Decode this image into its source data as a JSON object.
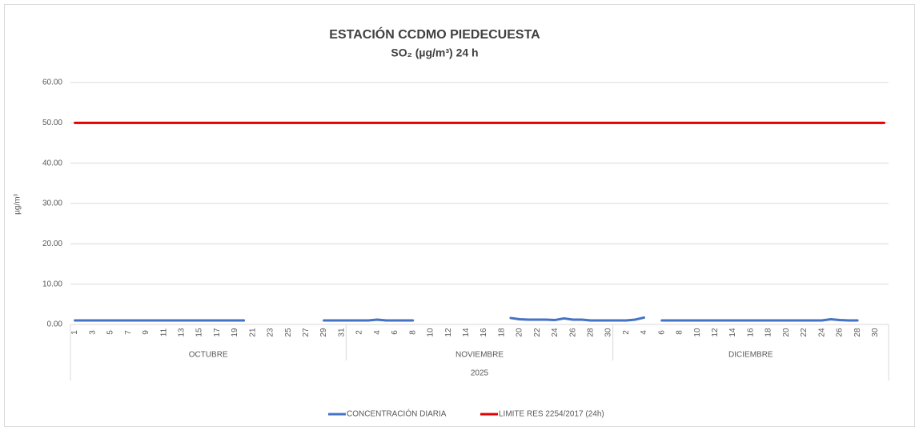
{
  "chart_data": {
    "type": "line",
    "title": "ESTACIÓN CCDMO PIEDECUESTA",
    "subtitle": "SO₂ (µg/m³) 24 h",
    "y_label": "µg/m³",
    "year": "2025",
    "groups": [
      {
        "name": "OCTUBRE",
        "categories": [
          "1",
          null,
          "3",
          null,
          "5",
          null,
          "7",
          null,
          "9",
          null,
          "11",
          null,
          "13",
          null,
          "15",
          null,
          "17",
          null,
          "19",
          null,
          "21",
          null,
          "23",
          null,
          "25",
          null,
          "27",
          null,
          "29",
          null,
          "31"
        ]
      },
      {
        "name": "NOVIEMBRE",
        "categories": [
          null,
          "2",
          null,
          "4",
          null,
          "6",
          null,
          "8",
          null,
          "10",
          null,
          "12",
          null,
          "14",
          null,
          "16",
          null,
          "18",
          null,
          "20",
          null,
          "22",
          null,
          "24",
          null,
          "26",
          null,
          "28",
          null,
          "30"
        ]
      },
      {
        "name": "DICIEMBRE",
        "categories": [
          null,
          "2",
          null,
          "4",
          null,
          "6",
          null,
          "8",
          null,
          "10",
          null,
          "12",
          null,
          "14",
          null,
          "16",
          null,
          "18",
          null,
          "20",
          null,
          "22",
          null,
          "24",
          null,
          "26",
          null,
          "28",
          null,
          "30",
          null
        ]
      }
    ],
    "series": [
      {
        "name": "CONCENTRACIÓN DIARIA",
        "color": "#4472c4",
        "values": [
          1.0,
          1.0,
          1.0,
          1.0,
          1.0,
          1.0,
          1.0,
          1.0,
          1.0,
          1.0,
          1.0,
          1.0,
          1.0,
          1.0,
          1.0,
          1.0,
          1.0,
          1.0,
          1.0,
          1.0,
          null,
          null,
          null,
          null,
          null,
          null,
          null,
          null,
          1.0,
          1.0,
          1.0,
          1.0,
          1.0,
          1.0,
          1.2,
          1.0,
          1.0,
          1.0,
          1.0,
          null,
          null,
          null,
          null,
          null,
          null,
          null,
          null,
          null,
          null,
          1.6,
          1.3,
          1.2,
          1.2,
          1.2,
          1.1,
          1.5,
          1.2,
          1.2,
          1.0,
          1.0,
          1.0,
          1.0,
          1.0,
          1.2,
          1.7,
          null,
          1.0,
          1.0,
          1.0,
          1.0,
          1.0,
          1.0,
          1.0,
          1.0,
          1.0,
          1.0,
          1.0,
          1.0,
          1.0,
          1.0,
          1.0,
          1.0,
          1.0,
          1.0,
          1.0,
          1.3,
          1.1,
          1.0,
          1.0,
          null,
          null,
          null
        ]
      },
      {
        "name": "LIMITE RES 2254/2017 (24h)",
        "color": "#e00000",
        "values": [
          50,
          50,
          50,
          50,
          50,
          50,
          50,
          50,
          50,
          50,
          50,
          50,
          50,
          50,
          50,
          50,
          50,
          50,
          50,
          50,
          50,
          50,
          50,
          50,
          50,
          50,
          50,
          50,
          50,
          50,
          50,
          50,
          50,
          50,
          50,
          50,
          50,
          50,
          50,
          50,
          50,
          50,
          50,
          50,
          50,
          50,
          50,
          50,
          50,
          50,
          50,
          50,
          50,
          50,
          50,
          50,
          50,
          50,
          50,
          50,
          50,
          50,
          50,
          50,
          50,
          50,
          50,
          50,
          50,
          50,
          50,
          50,
          50,
          50,
          50,
          50,
          50,
          50,
          50,
          50,
          50,
          50,
          50,
          50,
          50,
          50,
          50,
          50,
          50,
          50,
          50,
          50
        ]
      }
    ],
    "ylim": [
      0,
      60
    ],
    "yticks": [
      {
        "value": 0,
        "label": "0.00"
      },
      {
        "value": 10,
        "label": "10.00"
      },
      {
        "value": 20,
        "label": "20.00"
      },
      {
        "value": 30,
        "label": "30.00"
      },
      {
        "value": 40,
        "label": "40.00"
      },
      {
        "value": 50,
        "label": "50.00"
      },
      {
        "value": 60,
        "label": "60.00"
      }
    ],
    "grid": true,
    "legend": "bottom"
  }
}
